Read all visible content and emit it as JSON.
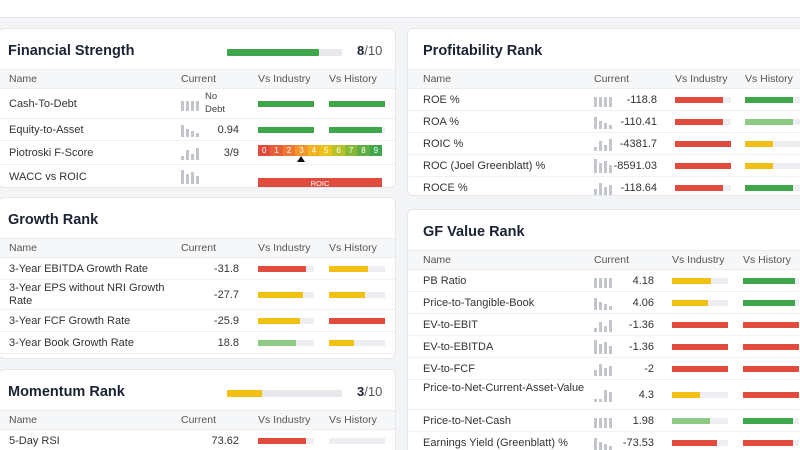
{
  "colors": {
    "green": "#3fa64b",
    "lightgreen": "#8cca86",
    "yellow": "#f2c014",
    "red": "#e04b3e",
    "track": "#eceef1"
  },
  "columns": {
    "name": "Name",
    "current": "Current",
    "vs_industry": "Vs Industry",
    "vs_history": "Vs History"
  },
  "financial_strength": {
    "title": "Financial Strength",
    "score": "8",
    "max": "/10",
    "score_fraction": 0.8,
    "score_color": "green",
    "rows": [
      {
        "name": "Cash-To-Debt",
        "current": "No Debt",
        "industry": {
          "p": 1.0,
          "c": "green"
        },
        "history": {
          "p": 1.0,
          "c": "green"
        }
      },
      {
        "name": "Equity-to-Asset",
        "current": "0.94",
        "industry": {
          "p": 1.0,
          "c": "green"
        },
        "history": {
          "p": 0.95,
          "c": "green"
        }
      },
      {
        "name": "Piotroski F-Score",
        "current": "3/9",
        "fscore": true
      },
      {
        "name": "WACC vs ROIC",
        "current": "",
        "roic": true
      }
    ],
    "fscore_labels": [
      "0",
      "1",
      "2",
      "3",
      "4",
      "5",
      "6",
      "7",
      "8",
      "9"
    ],
    "fscore_value": 3,
    "roic_label": "ROIC"
  },
  "profitability": {
    "title": "Profitability Rank",
    "rows": [
      {
        "name": "ROE %",
        "current": "-118.8",
        "industry": {
          "p": 0.85,
          "c": "red"
        },
        "history": {
          "p": 0.85,
          "c": "green"
        }
      },
      {
        "name": "ROA %",
        "current": "-110.41",
        "industry": {
          "p": 0.85,
          "c": "red"
        },
        "history": {
          "p": 0.85,
          "c": "lightgreen"
        }
      },
      {
        "name": "ROIC %",
        "current": "-4381.7",
        "industry": {
          "p": 1.0,
          "c": "red"
        },
        "history": {
          "p": 0.5,
          "c": "yellow"
        }
      },
      {
        "name": "ROC (Joel Greenblatt) %",
        "current": "-8591.03",
        "industry": {
          "p": 1.0,
          "c": "red"
        },
        "history": {
          "p": 0.5,
          "c": "yellow"
        }
      },
      {
        "name": "ROCE %",
        "current": "-118.64",
        "industry": {
          "p": 0.85,
          "c": "red"
        },
        "history": {
          "p": 0.85,
          "c": "green"
        }
      }
    ]
  },
  "growth": {
    "title": "Growth Rank",
    "rows": [
      {
        "name": "3-Year EBITDA Growth Rate",
        "current": "-31.8",
        "industry": {
          "p": 0.85,
          "c": "red"
        },
        "history": {
          "p": 0.7,
          "c": "yellow"
        }
      },
      {
        "name": "3-Year EPS without NRI Growth Rate",
        "current": "-27.7",
        "industry": {
          "p": 0.8,
          "c": "yellow"
        },
        "history": {
          "p": 0.65,
          "c": "yellow"
        }
      },
      {
        "name": "3-Year FCF Growth Rate",
        "current": "-25.9",
        "industry": {
          "p": 0.75,
          "c": "yellow"
        },
        "history": {
          "p": 1.0,
          "c": "red"
        }
      },
      {
        "name": "3-Year Book Growth Rate",
        "current": "18.8",
        "industry": {
          "p": 0.68,
          "c": "lightgreen"
        },
        "history": {
          "p": 0.45,
          "c": "yellow"
        }
      }
    ]
  },
  "momentum": {
    "title": "Momentum Rank",
    "score": "3",
    "max": "/10",
    "score_fraction": 0.3,
    "score_color": "yellow",
    "rows": [
      {
        "name": "5-Day RSI",
        "current": "73.62",
        "industry": {
          "p": 0.85,
          "c": "red"
        },
        "history": {
          "p": 0.0,
          "c": "green"
        }
      }
    ]
  },
  "gf_value": {
    "title": "GF Value Rank",
    "rows": [
      {
        "name": "PB Ratio",
        "current": "4.18",
        "industry": {
          "p": 0.7,
          "c": "yellow"
        },
        "history": {
          "p": 0.92,
          "c": "green"
        }
      },
      {
        "name": "Price-to-Tangible-Book",
        "current": "4.06",
        "industry": {
          "p": 0.65,
          "c": "yellow"
        },
        "history": {
          "p": 0.92,
          "c": "green"
        }
      },
      {
        "name": "EV-to-EBIT",
        "current": "-1.36",
        "industry": {
          "p": 1.0,
          "c": "red"
        },
        "history": {
          "p": 1.0,
          "c": "red"
        }
      },
      {
        "name": "EV-to-EBITDA",
        "current": "-1.36",
        "industry": {
          "p": 1.0,
          "c": "red"
        },
        "history": {
          "p": 1.0,
          "c": "red"
        }
      },
      {
        "name": "EV-to-FCF",
        "current": "-2",
        "industry": {
          "p": 1.0,
          "c": "red"
        },
        "history": {
          "p": 1.0,
          "c": "red"
        }
      },
      {
        "name": "Price-to-Net-Current-Asset-Value",
        "current": "4.3",
        "industry": {
          "p": 0.5,
          "c": "yellow"
        },
        "history": {
          "p": 1.0,
          "c": "red"
        }
      },
      {
        "name": "Price-to-Net-Cash",
        "current": "1.98",
        "industry": {
          "p": 0.68,
          "c": "lightgreen"
        },
        "history": {
          "p": 0.9,
          "c": "green"
        }
      },
      {
        "name": "Earnings Yield (Greenblatt) %",
        "current": "-73.53",
        "industry": {
          "p": 0.8,
          "c": "red"
        },
        "history": {
          "p": 0.9,
          "c": "red"
        }
      }
    ]
  }
}
